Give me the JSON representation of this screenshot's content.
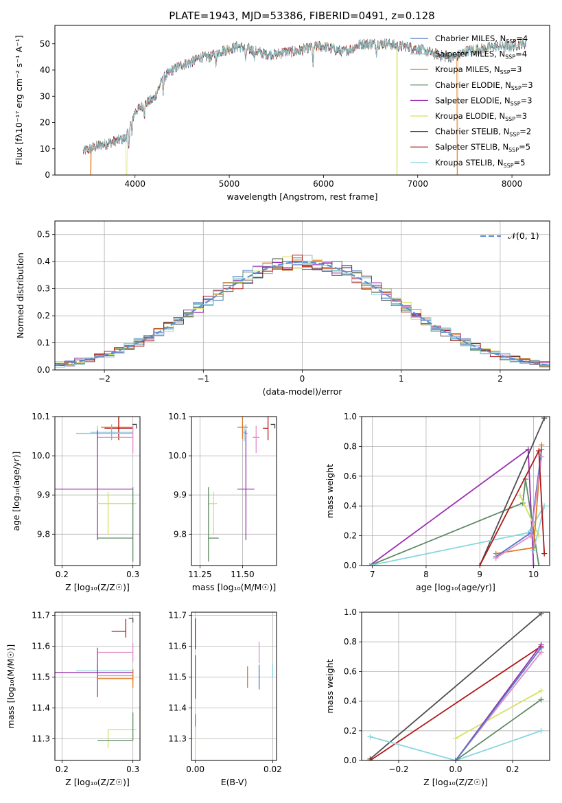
{
  "title": "PLATE=1943, MJD=53386, FIBERID=0491, z=0.128",
  "colors": {
    "Chabrier MILES": "#4f78c6",
    "Salpeter MILES": "#8bb3d9",
    "Kroupa MILES": "#e07a20",
    "Chabrier ELODIE": "#5d8a63",
    "Salpeter ELODIE": "#9b2fb0",
    "Kroupa ELODIE": "#d5e05a",
    "Chabrier STELIB": "#4d4d4d",
    "Salpeter STELIB": "#b01818",
    "Kroupa STELIB": "#86d6df",
    "extra_pink": "#e48bc8",
    "normal_curve": "#5b8fd6"
  },
  "chart_data": [
    {
      "id": "spectrum",
      "type": "line",
      "xlabel": "wavelength [Angstrom, rest frame]",
      "ylabel": "Flux [fλ10⁻¹⁷ erg cm⁻² s⁻¹ A⁻¹]",
      "xlim": [
        3150,
        8400
      ],
      "ylim": [
        0,
        57
      ],
      "xticks": [
        "4000",
        "5000",
        "6000",
        "7000",
        "8000"
      ],
      "yticks": [
        "0",
        "10",
        "20",
        "30",
        "40",
        "50"
      ],
      "legend_position": "top-right",
      "legend": [
        "Chabrier MILES, N_SSP=4",
        "Salpeter MILES, N_SSP=4",
        "Kroupa MILES, N_SSP=3",
        "Chabrier ELODIE, N_SSP=3",
        "Salpeter ELODIE, N_SSP=3",
        "Kroupa ELODIE, N_SSP=3",
        "Chabrier STELIB, N_SSP=2",
        "Salpeter STELIB, N_SSP=5",
        "Kroupa STELIB, N_SSP=5"
      ],
      "continuum": {
        "x": [
          3450,
          3600,
          3800,
          3900,
          4000,
          4100,
          4200,
          4300,
          4400,
          4500,
          4600,
          4700,
          4800,
          4900,
          5000,
          5100,
          5200,
          5300,
          5400,
          5500,
          5600,
          5700,
          5800,
          5900,
          6000,
          6100,
          6200,
          6300,
          6400,
          6500,
          6600,
          6700,
          6800,
          6900,
          7000,
          7100,
          7200,
          7300,
          7400,
          7500,
          7600,
          7700,
          7800,
          7900,
          8000,
          8100
        ],
        "y": [
          9,
          11,
          13,
          14,
          24,
          27,
          29,
          37,
          40,
          42,
          43,
          45,
          45,
          47,
          48,
          49,
          48,
          47,
          46,
          46,
          47,
          47,
          48,
          49,
          49,
          48,
          47,
          48,
          50,
          50,
          50,
          50,
          49,
          49,
          48,
          47,
          46,
          45,
          45,
          47,
          48,
          48,
          49,
          49,
          49,
          50
        ]
      },
      "dropouts": [
        {
          "series": "Kroupa MILES",
          "x": 3530
        },
        {
          "series": "Kroupa ELODIE",
          "x": 3910
        },
        {
          "series": "Kroupa ELODIE",
          "x": 6780
        },
        {
          "series": "Kroupa MILES",
          "x": 7420
        }
      ]
    },
    {
      "id": "residual-histogram",
      "type": "line",
      "xlabel": "(data-model)/error",
      "ylabel": "Normed distribution",
      "xlim": [
        -2.5,
        2.5
      ],
      "ylim": [
        0,
        0.55
      ],
      "xticks": [
        "−2",
        "−1",
        "0",
        "1",
        "2"
      ],
      "yticks": [
        "0.0",
        "0.1",
        "0.2",
        "0.3",
        "0.4",
        "0.5"
      ],
      "grid": true,
      "legend_position": "top-right",
      "legend": [
        "𝒩(0, 1)"
      ],
      "bin_width": 0.1,
      "noise_amplitude": 0.025
    },
    {
      "id": "age-vs-Z",
      "type": "scatter",
      "xlabel": "Z [log₁₀(Z/Z☉)]",
      "ylabel": "age  [log₁₀(age/yr)]",
      "xlim": [
        0.19,
        0.31
      ],
      "ylim": [
        9.72,
        10.1
      ],
      "xticks": [
        "0.2",
        "0.3"
      ],
      "yticks": [
        "9.8",
        "9.9",
        "10.0",
        "10.1"
      ],
      "grid": true,
      "points": [
        {
          "series": "Chabrier STELIB",
          "x": 0.305,
          "y": 10.08,
          "xerr": [
            0.0,
            0.0
          ],
          "yerr": [
            0.0,
            0.0
          ]
        },
        {
          "series": "Kroupa MILES",
          "x": 0.28,
          "y": 10.073,
          "xerr": [
            0.025,
            0.02
          ],
          "yerr": [
            0.03,
            0.03
          ]
        },
        {
          "series": "Salpeter STELIB",
          "x": 0.28,
          "y": 10.07,
          "xerr": [
            0.02,
            0.02
          ],
          "yerr": [
            0.03,
            0.04
          ]
        },
        {
          "series": "Kroupa STELIB",
          "x": 0.25,
          "y": 10.057,
          "xerr": [
            0.03,
            0.05
          ],
          "yerr": [
            0.02,
            0.02
          ]
        },
        {
          "series": "Salpeter MILES",
          "x": 0.27,
          "y": 10.06,
          "xerr": [
            0.03,
            0.03
          ],
          "yerr": [
            0.02,
            0.02
          ]
        },
        {
          "series": "extra_pink",
          "x": 0.3,
          "y": 10.047,
          "xerr": [
            0.05,
            0.0
          ],
          "yerr": [
            0.04,
            0.03
          ]
        },
        {
          "series": "Salpeter ELODIE",
          "x": 0.25,
          "y": 9.915,
          "xerr": [
            0.06,
            0.05
          ],
          "yerr": [
            0.13,
            0.15
          ]
        },
        {
          "series": "Kroupa ELODIE",
          "x": 0.265,
          "y": 9.878,
          "xerr": [
            0.015,
            0.04
          ],
          "yerr": [
            0.08,
            0.03
          ]
        },
        {
          "series": "Chabrier ELODIE",
          "x": 0.3,
          "y": 9.79,
          "xerr": [
            0.05,
            0.0
          ],
          "yerr": [
            0.06,
            0.13
          ]
        }
      ]
    },
    {
      "id": "age-vs-mass",
      "type": "scatter",
      "xlabel": "mass [log₁₀(M/M☉)]",
      "ylabel": "",
      "xlim": [
        11.2,
        11.7
      ],
      "ylim": [
        9.72,
        10.1
      ],
      "xticks": [
        "11.25",
        "11.50"
      ],
      "yticks": [
        "9.8",
        "9.9",
        "10.0",
        "10.1"
      ],
      "grid": true,
      "points": [
        {
          "series": "Chabrier STELIB",
          "x": 11.69,
          "y": 10.08,
          "xerr": [
            0.0,
            0.0
          ],
          "yerr": [
            0.0,
            0.0
          ]
        },
        {
          "series": "Kroupa MILES",
          "x": 11.5,
          "y": 10.073,
          "xerr": [
            0.03,
            0.03
          ],
          "yerr": [
            0.03,
            0.03
          ]
        },
        {
          "series": "Salpeter STELIB",
          "x": 11.65,
          "y": 10.07,
          "xerr": [
            0.03,
            0.0
          ],
          "yerr": [
            0.03,
            0.04
          ]
        },
        {
          "series": "Kroupa STELIB",
          "x": 11.51,
          "y": 10.057,
          "xerr": [
            0.0,
            0.02
          ],
          "yerr": [
            0.02,
            0.02
          ]
        },
        {
          "series": "Salpeter MILES",
          "x": 11.52,
          "y": 10.06,
          "xerr": [
            0.02,
            0.0
          ],
          "yerr": [
            0.02,
            0.02
          ]
        },
        {
          "series": "extra_pink",
          "x": 11.58,
          "y": 10.047,
          "xerr": [
            0.02,
            0.02
          ],
          "yerr": [
            0.04,
            0.03
          ]
        },
        {
          "series": "Salpeter ELODIE",
          "x": 11.52,
          "y": 9.915,
          "xerr": [
            0.05,
            0.05
          ],
          "yerr": [
            0.13,
            0.15
          ]
        },
        {
          "series": "Kroupa ELODIE",
          "x": 11.33,
          "y": 9.878,
          "xerr": [
            0.03,
            0.02
          ],
          "yerr": [
            0.08,
            0.03
          ]
        },
        {
          "series": "Chabrier ELODIE",
          "x": 11.3,
          "y": 9.79,
          "xerr": [
            0.0,
            0.06
          ],
          "yerr": [
            0.06,
            0.13
          ]
        }
      ]
    },
    {
      "id": "weight-vs-age",
      "type": "line",
      "xlabel": "age  [log₁₀(age/yr)]",
      "ylabel": "mass weight",
      "xlim": [
        6.8,
        10.3
      ],
      "ylim": [
        0,
        1
      ],
      "xticks": [
        "7",
        "8",
        "9",
        "10"
      ],
      "yticks": [
        "0.0",
        "0.2",
        "0.4",
        "0.6",
        "0.8",
        "1.0"
      ],
      "grid": true,
      "series": [
        {
          "series": "Salpeter ELODIE",
          "x": [
            6.95,
            9.9,
            10.0
          ],
          "y": [
            0.0,
            0.78,
            0.0
          ]
        },
        {
          "series": "Chabrier ELODIE",
          "x": [
            6.95,
            9.8,
            9.85,
            10.1
          ],
          "y": [
            0.0,
            0.42,
            0.58,
            0.0
          ]
        },
        {
          "series": "Kroupa ELODIE",
          "x": [
            9.75,
            10.1
          ],
          "y": [
            0.47,
            0.2
          ]
        },
        {
          "series": "Chabrier STELIB",
          "x": [
            9.0,
            10.2
          ],
          "y": [
            0.0,
            0.99
          ]
        },
        {
          "series": "Kroupa STELIB",
          "x": [
            6.95,
            9.9,
            10.2,
            10.0
          ],
          "y": [
            0.0,
            0.22,
            0.4,
            0.1
          ]
        },
        {
          "series": "Kroupa MILES",
          "x": [
            9.3,
            10.0,
            10.15
          ],
          "y": [
            0.08,
            0.12,
            0.81
          ]
        },
        {
          "series": "Chabrier MILES",
          "x": [
            9.3,
            9.95,
            10.15
          ],
          "y": [
            0.06,
            0.22,
            0.78
          ]
        },
        {
          "series": "extra_pink",
          "x": [
            9.3,
            9.95,
            10.15
          ],
          "y": [
            0.05,
            0.2,
            0.73
          ]
        },
        {
          "series": "Salpeter STELIB",
          "x": [
            9.0,
            10.1,
            10.2
          ],
          "y": [
            0.0,
            0.77,
            0.08
          ]
        }
      ]
    },
    {
      "id": "mass-vs-Z",
      "type": "scatter",
      "xlabel": "Z [log₁₀(Z/Z☉)]",
      "ylabel": "mass [log₁₀(M/M☉)]",
      "xlim": [
        0.19,
        0.31
      ],
      "ylim": [
        11.23,
        11.71
      ],
      "xticks": [
        "0.2",
        "0.3"
      ],
      "yticks": [
        "11.3",
        "11.4",
        "11.5",
        "11.6",
        "11.7"
      ],
      "grid": true,
      "points": [
        {
          "series": "Chabrier STELIB",
          "x": 0.3,
          "y": 11.69,
          "xerr": [
            0.0,
            0.0
          ],
          "yerr": [
            0.0,
            0.0
          ]
        },
        {
          "series": "Salpeter STELIB",
          "x": 0.29,
          "y": 11.648,
          "xerr": [
            0.02,
            0.0
          ],
          "yerr": [
            0.02,
            0.04
          ]
        },
        {
          "series": "extra_pink",
          "x": 0.3,
          "y": 11.58,
          "xerr": [
            0.05,
            0.0
          ],
          "yerr": [
            0.03,
            0.03
          ]
        },
        {
          "series": "Kroupa STELIB",
          "x": 0.25,
          "y": 11.52,
          "xerr": [
            0.03,
            0.05
          ],
          "yerr": [
            0.02,
            0.02
          ]
        },
        {
          "series": "Salpeter ELODIE",
          "x": 0.25,
          "y": 11.515,
          "xerr": [
            0.06,
            0.05
          ],
          "yerr": [
            0.08,
            0.08
          ]
        },
        {
          "series": "Salpeter MILES",
          "x": 0.3,
          "y": 11.505,
          "xerr": [
            0.05,
            0.0
          ],
          "yerr": [
            0.02,
            0.02
          ]
        },
        {
          "series": "Kroupa MILES",
          "x": 0.3,
          "y": 11.495,
          "xerr": [
            0.05,
            0.0
          ],
          "yerr": [
            0.03,
            0.03
          ]
        },
        {
          "series": "Kroupa ELODIE",
          "x": 0.265,
          "y": 11.33,
          "xerr": [
            0.0,
            0.04
          ],
          "yerr": [
            0.06,
            0.0
          ]
        },
        {
          "series": "Chabrier ELODIE",
          "x": 0.3,
          "y": 11.295,
          "xerr": [
            0.05,
            0.0
          ],
          "yerr": [
            0.0,
            0.09
          ]
        }
      ]
    },
    {
      "id": "mass-vs-EBV",
      "type": "scatter",
      "xlabel": "E(B-V)",
      "ylabel": "",
      "xlim": [
        -0.001,
        0.021
      ],
      "ylim": [
        11.23,
        11.71
      ],
      "xticks": [
        "0.00",
        "0.02"
      ],
      "yticks": [
        "11.3",
        "11.4",
        "11.5",
        "11.6",
        "11.7"
      ],
      "grid": true,
      "points": [
        {
          "series": "Salpeter STELIB",
          "x": 0.0,
          "y": 11.64,
          "xerr": [
            0.0,
            0.0
          ],
          "yerr": [
            0.05,
            0.05
          ]
        },
        {
          "series": "Salpeter ELODIE",
          "x": 0.0,
          "y": 11.5,
          "xerr": [
            0.0,
            0.0
          ],
          "yerr": [
            0.07,
            0.07
          ]
        },
        {
          "series": "Chabrier ELODIE",
          "x": 0.0,
          "y": 11.34,
          "xerr": [
            0.0,
            0.0
          ],
          "yerr": [
            0.04,
            0.04
          ]
        },
        {
          "series": "Kroupa ELODIE",
          "x": 0.0,
          "y": 11.3,
          "xerr": [
            0.0,
            0.0
          ],
          "yerr": [
            0.04,
            0.04
          ]
        },
        {
          "series": "Kroupa MILES",
          "x": 0.0135,
          "y": 11.5,
          "xerr": [
            0.0,
            0.0
          ],
          "yerr": [
            0.035,
            0.035
          ]
        },
        {
          "series": "extra_pink",
          "x": 0.0165,
          "y": 11.58,
          "xerr": [
            0.0,
            0.0
          ],
          "yerr": [
            0.035,
            0.035
          ]
        },
        {
          "series": "Chabrier MILES",
          "x": 0.0165,
          "y": 11.5,
          "xerr": [
            0.0,
            0.0
          ],
          "yerr": [
            0.04,
            0.04
          ]
        },
        {
          "series": "Kroupa STELIB",
          "x": 0.02,
          "y": 11.52,
          "xerr": [
            0.0,
            0.0
          ],
          "yerr": [
            0.02,
            0.02
          ]
        }
      ]
    },
    {
      "id": "weight-vs-Z",
      "type": "line",
      "xlabel": "Z [log₁₀(Z/Z☉)]",
      "ylabel": "mass weight",
      "xlim": [
        -0.33,
        0.33
      ],
      "ylim": [
        0,
        1
      ],
      "xticks": [
        "−0.2",
        "0.0",
        "0.2"
      ],
      "yticks": [
        "0.0",
        "0.2",
        "0.4",
        "0.6",
        "0.8",
        "1.0"
      ],
      "grid": true,
      "series": [
        {
          "series": "Chabrier STELIB",
          "x": [
            -0.3,
            0.3
          ],
          "y": [
            0.01,
            0.99
          ]
        },
        {
          "series": "Salpeter STELIB",
          "x": [
            -0.3,
            0.3
          ],
          "y": [
            0.0,
            0.77
          ]
        },
        {
          "series": "Kroupa STELIB",
          "x": [
            -0.3,
            0.0,
            0.3
          ],
          "y": [
            0.16,
            0.0,
            0.2
          ]
        },
        {
          "series": "Kroupa ELODIE",
          "x": [
            0.0,
            0.3
          ],
          "y": [
            0.15,
            0.47
          ]
        },
        {
          "series": "Chabrier ELODIE",
          "x": [
            0.0,
            0.3
          ],
          "y": [
            0.0,
            0.41
          ]
        },
        {
          "series": "Salpeter ELODIE",
          "x": [
            0.0,
            0.3
          ],
          "y": [
            0.0,
            0.78
          ]
        },
        {
          "series": "extra_pink",
          "x": [
            0.0,
            0.3
          ],
          "y": [
            0.0,
            0.73
          ]
        },
        {
          "series": "Chabrier MILES",
          "x": [
            0.0,
            0.3
          ],
          "y": [
            0.0,
            0.76
          ]
        }
      ]
    }
  ]
}
